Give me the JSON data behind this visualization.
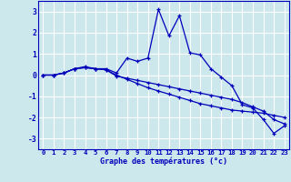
{
  "xlabel": "Graphe des températures (°c)",
  "background_color": "#cce8ec",
  "grid_color": "#ffffff",
  "line_color": "#0000bb",
  "x_values": [
    0,
    1,
    2,
    3,
    4,
    5,
    6,
    7,
    8,
    9,
    10,
    11,
    12,
    13,
    14,
    15,
    16,
    17,
    18,
    19,
    20,
    21,
    22,
    23
  ],
  "series": [
    [
      0.0,
      0.0,
      0.1,
      0.3,
      0.4,
      0.3,
      0.3,
      0.1,
      0.8,
      0.65,
      0.8,
      3.1,
      1.85,
      2.8,
      1.05,
      0.95,
      0.3,
      -0.1,
      -0.5,
      -1.4,
      -1.55,
      -2.1,
      -2.75,
      -2.4
    ],
    [
      0.0,
      0.0,
      0.1,
      0.3,
      0.35,
      0.3,
      0.25,
      -0.05,
      -0.15,
      -0.25,
      -0.35,
      -0.45,
      -0.55,
      -0.65,
      -0.75,
      -0.85,
      -0.95,
      -1.05,
      -1.15,
      -1.3,
      -1.5,
      -1.7,
      -2.1,
      -2.3
    ],
    [
      0.0,
      0.0,
      0.1,
      0.3,
      0.35,
      0.3,
      0.25,
      0.0,
      -0.2,
      -0.4,
      -0.6,
      -0.75,
      -0.9,
      -1.05,
      -1.2,
      -1.35,
      -1.45,
      -1.55,
      -1.65,
      -1.7,
      -1.75,
      -1.8,
      -1.9,
      -2.0
    ]
  ],
  "ylim": [
    -3.5,
    3.5
  ],
  "yticks": [
    -3,
    -2,
    -1,
    0,
    1,
    2,
    3
  ],
  "xlim": [
    -0.5,
    23.5
  ],
  "xtick_labels": [
    "0",
    "1",
    "2",
    "3",
    "4",
    "5",
    "6",
    "7",
    "8",
    "9",
    "10",
    "11",
    "12",
    "13",
    "14",
    "15",
    "16",
    "17",
    "18",
    "19",
    "20",
    "21",
    "22",
    "23"
  ],
  "xlabel_fontsize": 6.0,
  "tick_fontsize": 5.2,
  "ytick_fontsize": 5.8
}
